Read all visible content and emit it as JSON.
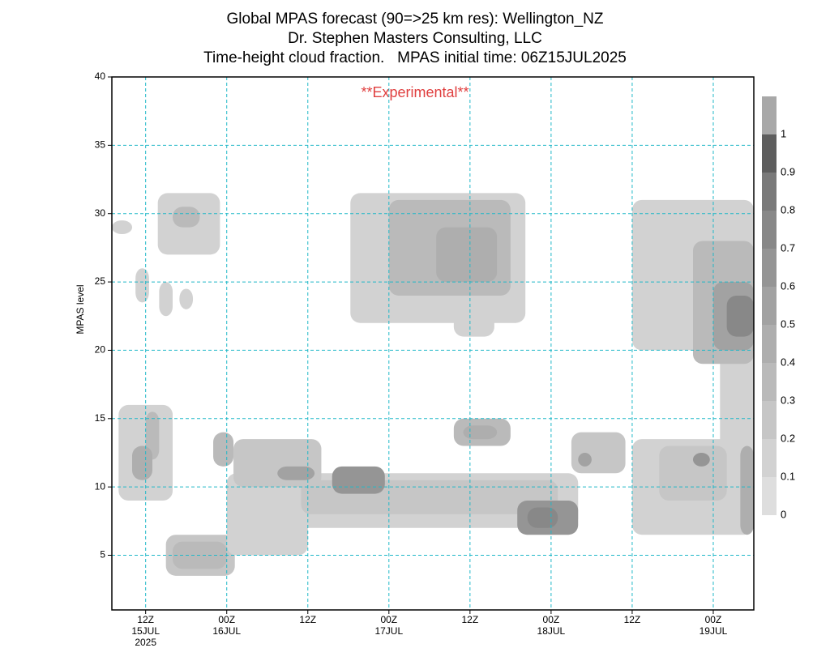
{
  "chart_data": {
    "type": "time-height",
    "title": [
      "Global MPAS forecast (90=>25 km res): Wellington_NZ",
      "Dr. Stephen Masters Consulting, LLC",
      "Time-height cloud fraction.   MPAS initial time: 06Z15JUL2025"
    ],
    "annotation": "**Experimental**",
    "y_label": "MPAS level",
    "xlim": [
      1,
      96
    ],
    "ylim": [
      1,
      40
    ],
    "xticks": [
      {
        "value": 6,
        "label": "12Z",
        "date": "15JUL",
        "year": "2025"
      },
      {
        "value": 18,
        "label": "00Z",
        "date": "16JUL"
      },
      {
        "value": 30,
        "label": "12Z"
      },
      {
        "value": 42,
        "label": "00Z",
        "date": "17JUL"
      },
      {
        "value": 54,
        "label": "12Z"
      },
      {
        "value": 66,
        "label": "00Z",
        "date": "18JUL"
      },
      {
        "value": 78,
        "label": "12Z"
      },
      {
        "value": 90,
        "label": "00Z",
        "date": "19JUL"
      }
    ],
    "yticks": [
      5,
      10,
      15,
      20,
      25,
      30,
      35,
      40
    ],
    "grid": true,
    "grid_color": "#20b8c8",
    "colorbar": {
      "levels": [
        0,
        0.1,
        0.2,
        0.3,
        0.4,
        0.5,
        0.6,
        0.7,
        0.8,
        0.9,
        1
      ],
      "colors": [
        "#dedede",
        "#d2d2d2",
        "#c6c6c6",
        "#bababa",
        "#aeaeae",
        "#a2a2a2",
        "#959595",
        "#888888",
        "#7a7a7a",
        "#5e5e5e",
        "#a8a8a8"
      ]
    },
    "regions": [
      {
        "t": [
          36.3,
          62.2
        ],
        "z": [
          22,
          31.5
        ],
        "value": 0.15
      },
      {
        "t": [
          51.6,
          57.6
        ],
        "z": [
          21,
          24
        ],
        "value": 0.15
      },
      {
        "t": [
          42,
          60
        ],
        "z": [
          24,
          31
        ],
        "value": 0.3
      },
      {
        "t": [
          49,
          58
        ],
        "z": [
          25,
          29
        ],
        "value": 0.45
      },
      {
        "t": [
          7.8,
          17
        ],
        "z": [
          27,
          31.5
        ],
        "value": 0.15
      },
      {
        "t": [
          10,
          14
        ],
        "z": [
          29,
          30.5
        ],
        "value": 0.3
      },
      {
        "t": [
          1,
          4
        ],
        "z": [
          28.5,
          29.5
        ],
        "value": 0.1
      },
      {
        "t": [
          4.5,
          6.5
        ],
        "z": [
          23.5,
          26
        ],
        "value": 0.15
      },
      {
        "t": [
          8,
          10
        ],
        "z": [
          22.5,
          25
        ],
        "value": 0.15
      },
      {
        "t": [
          11,
          13
        ],
        "z": [
          23,
          24.5
        ],
        "value": 0.1
      },
      {
        "t": [
          78,
          96
        ],
        "z": [
          20,
          31
        ],
        "value": 0.15
      },
      {
        "t": [
          91,
          96
        ],
        "z": [
          7,
          20
        ],
        "value": 0.15
      },
      {
        "t": [
          87,
          96
        ],
        "z": [
          19,
          28
        ],
        "value": 0.3
      },
      {
        "t": [
          90,
          96
        ],
        "z": [
          20,
          25
        ],
        "value": 0.55
      },
      {
        "t": [
          92,
          96
        ],
        "z": [
          21,
          24
        ],
        "value": 0.7
      },
      {
        "t": [
          9,
          19.2
        ],
        "z": [
          3.5,
          6.5
        ],
        "value": 0.2
      },
      {
        "t": [
          10,
          18
        ],
        "z": [
          4,
          6
        ],
        "value": 0.35
      },
      {
        "t": [
          18,
          30
        ],
        "z": [
          5,
          11
        ],
        "value": 0.15
      },
      {
        "t": [
          27,
          70
        ],
        "z": [
          7,
          11
        ],
        "value": 0.15
      },
      {
        "t": [
          29,
          67
        ],
        "z": [
          8,
          10.5
        ],
        "value": 0.25
      },
      {
        "t": [
          33.6,
          41.4
        ],
        "z": [
          9.5,
          11.5
        ],
        "value": 0.6
      },
      {
        "t": [
          61,
          70
        ],
        "z": [
          6.5,
          9
        ],
        "value": 0.6
      },
      {
        "t": [
          62.5,
          67
        ],
        "z": [
          7,
          8.5
        ],
        "value": 0.7
      },
      {
        "t": [
          19,
          32
        ],
        "z": [
          10,
          13.5
        ],
        "value": 0.2
      },
      {
        "t": [
          25.5,
          31
        ],
        "z": [
          10.5,
          11.5
        ],
        "value": 0.5
      },
      {
        "t": [
          2,
          10
        ],
        "z": [
          9,
          16
        ],
        "value": 0.15
      },
      {
        "t": [
          6,
          8
        ],
        "z": [
          12,
          15.5
        ],
        "value": 0.3
      },
      {
        "t": [
          4,
          7
        ],
        "z": [
          10.5,
          13
        ],
        "value": 0.45
      },
      {
        "t": [
          16,
          19
        ],
        "z": [
          11.5,
          14
        ],
        "value": 0.3
      },
      {
        "t": [
          51.6,
          60
        ],
        "z": [
          13,
          15
        ],
        "value": 0.3
      },
      {
        "t": [
          53,
          58
        ],
        "z": [
          13.5,
          14.5
        ],
        "value": 0.4
      },
      {
        "t": [
          69,
          77
        ],
        "z": [
          11,
          14
        ],
        "value": 0.25
      },
      {
        "t": [
          70,
          72
        ],
        "z": [
          11.5,
          12.5
        ],
        "value": 0.55
      },
      {
        "t": [
          78,
          96
        ],
        "z": [
          6.5,
          13.5
        ],
        "value": 0.15
      },
      {
        "t": [
          82,
          92
        ],
        "z": [
          9,
          13
        ],
        "value": 0.25
      },
      {
        "t": [
          87,
          89.5
        ],
        "z": [
          11.5,
          12.5
        ],
        "value": 0.6
      },
      {
        "t": [
          94,
          96
        ],
        "z": [
          6.5,
          13
        ],
        "value": 0.4
      }
    ]
  }
}
